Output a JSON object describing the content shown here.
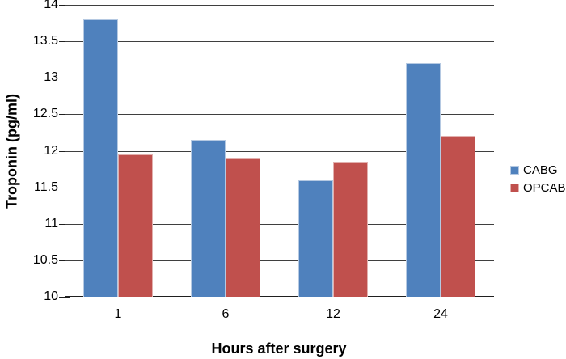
{
  "chart_data": {
    "type": "bar",
    "title": "",
    "categories": [
      "1",
      "6",
      "12",
      "24"
    ],
    "series": [
      {
        "name": "CABG",
        "color": "#4f81bd",
        "border_color": "#b5c9e2",
        "values": [
          13.8,
          12.15,
          11.6,
          13.2
        ]
      },
      {
        "name": "OPCAB",
        "color": "#c0504d",
        "border_color": "#e2b0ae",
        "values": [
          11.95,
          11.9,
          11.85,
          12.2
        ]
      }
    ],
    "xlabel": "Hours after surgery",
    "ylabel": "Troponin (pg/ml)",
    "ylim": [
      10,
      14
    ],
    "ytick_step": 0.5,
    "ytick_labels": [
      "14",
      "13.5",
      "13",
      "12.5",
      "12",
      "11.5",
      "11",
      "10.5",
      "10"
    ],
    "grid": true,
    "legend_position": "right",
    "colors": {
      "gridline": "#3f3f3f",
      "axis": "#1f1f1f",
      "text": "#000000",
      "background": "#ffffff"
    }
  }
}
